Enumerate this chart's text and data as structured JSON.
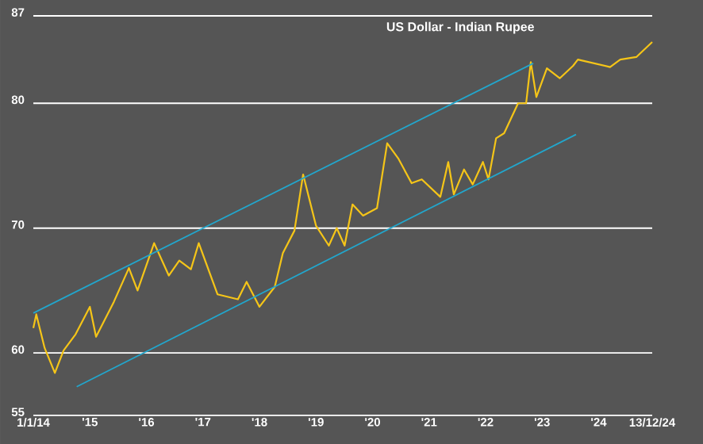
{
  "chart_data": {
    "type": "line",
    "title": "US Dollar - Indian Rupee",
    "x": [
      "2014-01-01",
      "2014-01-20",
      "2014-03-15",
      "2014-05-20",
      "2014-07-15",
      "2014-10-01",
      "2015-01-01",
      "2015-02-10",
      "2015-06-05",
      "2015-09-10",
      "2015-11-05",
      "2016-02-20",
      "2016-05-25",
      "2016-08-01",
      "2016-10-15",
      "2016-12-05",
      "2017-04-05",
      "2017-08-15",
      "2017-10-10",
      "2018-01-01",
      "2018-04-10",
      "2018-06-01",
      "2018-08-15",
      "2018-10-10",
      "2019-01-01",
      "2019-03-25",
      "2019-05-15",
      "2019-07-05",
      "2019-08-25",
      "2019-11-01",
      "2020-01-30",
      "2020-04-05",
      "2020-06-15",
      "2020-09-10",
      "2020-11-15",
      "2021-03-15",
      "2021-05-05",
      "2021-06-10",
      "2021-08-15",
      "2021-10-10",
      "2021-12-15",
      "2022-01-20",
      "2022-03-10",
      "2022-05-01",
      "2022-07-30",
      "2022-09-20",
      "2022-10-20",
      "2022-11-25",
      "2023-02-01",
      "2023-04-25",
      "2023-07-20",
      "2023-08-20",
      "2024-03-15",
      "2024-05-20",
      "2024-09-01",
      "2024-12-13"
    ],
    "series": [
      {
        "color": "#f5c518",
        "values": [
          62.0,
          63.1,
          60.4,
          58.4,
          60.2,
          61.5,
          63.7,
          61.3,
          64.1,
          66.8,
          65.0,
          68.8,
          66.2,
          67.4,
          66.7,
          68.8,
          64.7,
          64.3,
          65.7,
          63.7,
          65.3,
          68.0,
          69.8,
          74.3,
          70.2,
          68.6,
          70.0,
          68.6,
          71.9,
          71.0,
          71.6,
          76.8,
          75.6,
          73.6,
          73.9,
          72.5,
          75.3,
          72.7,
          74.7,
          73.5,
          75.3,
          73.9,
          77.2,
          77.6,
          80.0,
          80.0,
          83.3,
          80.5,
          82.8,
          82.0,
          83.0,
          83.5,
          82.9,
          83.5,
          83.7,
          84.9
        ]
      },
      {
        "type": "line",
        "color": "#22a6cc",
        "x": [
          "2014-01-01",
          "2022-11-05"
        ],
        "values": [
          63.2,
          83.2
        ]
      },
      {
        "type": "line",
        "color": "#22a6cc",
        "x": [
          "2014-10-08",
          "2023-08-08"
        ],
        "values": [
          57.3,
          77.5
        ]
      }
    ],
    "xlim": [
      "2014-01-01",
      "2024-12-13"
    ],
    "xticks": [
      {
        "value": "2014-01-01",
        "label": "1/1/14"
      },
      {
        "value": "2015-01-01",
        "label": "'15"
      },
      {
        "value": "2016-01-01",
        "label": "'16"
      },
      {
        "value": "2017-01-01",
        "label": "'17"
      },
      {
        "value": "2018-01-01",
        "label": "'18"
      },
      {
        "value": "2019-01-01",
        "label": "'19"
      },
      {
        "value": "2020-01-01",
        "label": "'20"
      },
      {
        "value": "2021-01-01",
        "label": "'21"
      },
      {
        "value": "2022-01-01",
        "label": "'22"
      },
      {
        "value": "2023-01-01",
        "label": "'23"
      },
      {
        "value": "2024-01-01",
        "label": "'24"
      },
      {
        "value": "2024-12-13",
        "label": "13/12/24"
      }
    ],
    "ylim": [
      55,
      87
    ],
    "yticks": [
      55,
      60,
      70,
      80,
      87
    ],
    "grid": "y"
  }
}
